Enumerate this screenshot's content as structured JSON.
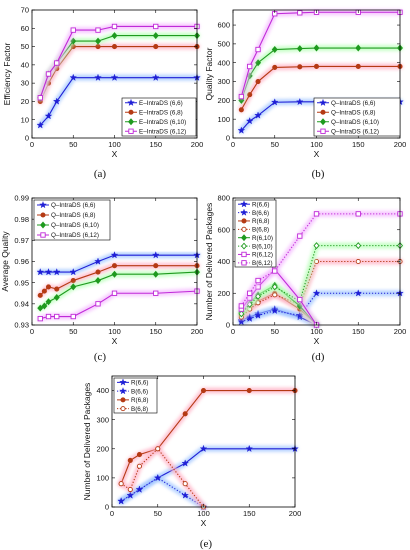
{
  "colors": {
    "blue": "#1f1fd6",
    "brown": "#b53a14",
    "green": "#1f9a1f",
    "purple": "#c02bd8",
    "glow_blue": "#9fc4ff",
    "glow_red": "#ffb0c4",
    "glow_green": "#b6ffb6",
    "glow_purple": "#f4b8ff"
  },
  "chart_data": [
    {
      "id": "a",
      "panel_label": "(a)",
      "type": "line",
      "xlabel": "X",
      "ylabel": "Efficiency Factor",
      "xlim": [
        0,
        200
      ],
      "ylim": [
        0,
        70
      ],
      "xticks": [
        "0",
        "50",
        "100",
        "150",
        "200"
      ],
      "yticks": [
        "0",
        "10",
        "20",
        "30",
        "40",
        "50",
        "60",
        "70"
      ],
      "legend_position": "bottom-right",
      "grid": false,
      "series": [
        {
          "name": "E–IntraDS (6,6)",
          "color": "blue",
          "marker": "star",
          "line": "solid",
          "x": [
            10,
            20,
            30,
            50,
            80,
            100,
            150,
            200
          ],
          "y": [
            7,
            12,
            20,
            33,
            33,
            33,
            33,
            33
          ]
        },
        {
          "name": "E–IntraDS (6,8)",
          "color": "brown",
          "marker": "circle",
          "line": "solid",
          "x": [
            10,
            20,
            30,
            50,
            80,
            100,
            150,
            200
          ],
          "y": [
            20,
            30,
            38,
            50,
            50,
            50,
            50,
            50
          ]
        },
        {
          "name": "E–IntraDS (6,10)",
          "color": "green",
          "marker": "diamond",
          "line": "solid",
          "x": [
            10,
            20,
            30,
            50,
            80,
            100,
            150,
            200
          ],
          "y": [
            22,
            35,
            41,
            53,
            53,
            56,
            56,
            56
          ]
        },
        {
          "name": "E–IntraDS (6,12)",
          "color": "purple",
          "marker": "square",
          "line": "solid",
          "x": [
            10,
            20,
            30,
            50,
            80,
            100,
            150,
            200
          ],
          "y": [
            22,
            35,
            41,
            59,
            59,
            61,
            61,
            61
          ]
        }
      ]
    },
    {
      "id": "b",
      "panel_label": "(b)",
      "type": "line",
      "xlabel": "X",
      "ylabel": "Quality Factor",
      "xlim": [
        0,
        200
      ],
      "ylim": [
        0,
        680
      ],
      "xticks": [
        "0",
        "50",
        "100",
        "150",
        "200"
      ],
      "yticks": [
        "0",
        "100",
        "200",
        "300",
        "400",
        "500",
        "600"
      ],
      "legend_position": "bottom-right",
      "grid": false,
      "series": [
        {
          "name": "Q–IntraDS (6,6)",
          "color": "blue",
          "marker": "star",
          "line": "solid",
          "x": [
            10,
            20,
            30,
            50,
            80,
            100,
            150,
            200
          ],
          "y": [
            40,
            90,
            120,
            190,
            192,
            192,
            192,
            192
          ]
        },
        {
          "name": "Q–IntraDS (6,8)",
          "color": "brown",
          "marker": "circle",
          "line": "solid",
          "x": [
            10,
            20,
            30,
            50,
            80,
            100,
            150,
            200
          ],
          "y": [
            150,
            230,
            300,
            375,
            378,
            380,
            380,
            380
          ]
        },
        {
          "name": "Q–IntraDS (6,10)",
          "color": "green",
          "marker": "diamond",
          "line": "solid",
          "x": [
            10,
            20,
            30,
            50,
            80,
            100,
            150,
            200
          ],
          "y": [
            200,
            330,
            400,
            470,
            475,
            478,
            478,
            478
          ]
        },
        {
          "name": "Q–IntraDS (6,12)",
          "color": "purple",
          "marker": "square",
          "line": "solid",
          "x": [
            10,
            20,
            30,
            50,
            80,
            100,
            150,
            200
          ],
          "y": [
            220,
            380,
            470,
            660,
            665,
            668,
            668,
            668
          ]
        }
      ]
    },
    {
      "id": "c",
      "panel_label": "(c)",
      "type": "line",
      "xlabel": "X",
      "ylabel": "Average Quality",
      "xlim": [
        0,
        200
      ],
      "ylim": [
        0.93,
        0.99
      ],
      "xticks": [
        "0",
        "50",
        "100",
        "150",
        "200"
      ],
      "yticks": [
        "0.93",
        "0.94",
        "0.95",
        "0.96",
        "0.97",
        "0.98",
        "0.99"
      ],
      "legend_position": "top-left",
      "grid": false,
      "series": [
        {
          "name": "Q–IntraDS (6,6)",
          "color": "blue",
          "marker": "star",
          "line": "solid",
          "x": [
            10,
            20,
            30,
            50,
            80,
            100,
            150,
            200
          ],
          "y": [
            0.955,
            0.955,
            0.955,
            0.955,
            0.96,
            0.963,
            0.963,
            0.963
          ]
        },
        {
          "name": "Q–IntraDS (6,8)",
          "color": "brown",
          "marker": "circle",
          "line": "solid",
          "x": [
            10,
            15,
            20,
            30,
            50,
            80,
            100,
            150,
            200
          ],
          "y": [
            0.944,
            0.946,
            0.948,
            0.947,
            0.951,
            0.955,
            0.958,
            0.958,
            0.958
          ]
        },
        {
          "name": "Q–IntraDS (6,10)",
          "color": "green",
          "marker": "diamond",
          "line": "solid",
          "x": [
            10,
            15,
            20,
            30,
            50,
            80,
            100,
            150,
            200
          ],
          "y": [
            0.938,
            0.939,
            0.941,
            0.943,
            0.948,
            0.951,
            0.954,
            0.954,
            0.955
          ]
        },
        {
          "name": "Q–IntraDS (6,12)",
          "color": "purple",
          "marker": "square",
          "line": "solid",
          "x": [
            10,
            20,
            30,
            50,
            80,
            100,
            150,
            200
          ],
          "y": [
            0.933,
            0.934,
            0.934,
            0.934,
            0.94,
            0.945,
            0.945,
            0.946
          ]
        }
      ]
    },
    {
      "id": "d",
      "panel_label": "(d)",
      "type": "line",
      "xlabel": "X",
      "ylabel": "Number of Delivered Packages",
      "xlim": [
        0,
        200
      ],
      "ylim": [
        0,
        800
      ],
      "xticks": [
        "0",
        "50",
        "100",
        "150",
        "200"
      ],
      "yticks": [
        "0",
        "200",
        "400",
        "600",
        "800"
      ],
      "legend_position": "top-left",
      "grid": false,
      "series": [
        {
          "name": "R(6,6)",
          "color": "blue",
          "marker": "star",
          "line": "solid",
          "x": [
            10,
            20,
            30,
            50,
            80,
            100
          ],
          "y": [
            30,
            50,
            70,
            100,
            50,
            0
          ]
        },
        {
          "name": "B(6,6)",
          "color": "blue",
          "marker": "star",
          "line": "dotted",
          "x": [
            10,
            20,
            30,
            50,
            80,
            100,
            150,
            200
          ],
          "y": [
            20,
            40,
            60,
            90,
            60,
            200,
            200,
            200
          ]
        },
        {
          "name": "R(6,8)",
          "color": "brown",
          "marker": "circle",
          "line": "solid",
          "x": [
            10,
            20,
            30,
            50,
            80,
            100
          ],
          "y": [
            60,
            110,
            150,
            200,
            100,
            0
          ]
        },
        {
          "name": "B(6,8)",
          "color": "brown",
          "marker": "circle-open",
          "line": "dotted",
          "x": [
            10,
            20,
            30,
            50,
            80,
            100,
            150,
            200
          ],
          "y": [
            50,
            100,
            140,
            190,
            130,
            400,
            400,
            400
          ]
        },
        {
          "name": "R(6,10)",
          "color": "green",
          "marker": "diamond",
          "line": "solid",
          "x": [
            10,
            20,
            30,
            50,
            80,
            100
          ],
          "y": [
            80,
            140,
            190,
            250,
            120,
            0
          ]
        },
        {
          "name": "B(6,10)",
          "color": "green",
          "marker": "diamond-open",
          "line": "dotted",
          "x": [
            10,
            20,
            30,
            50,
            80,
            100,
            150,
            200
          ],
          "y": [
            70,
            130,
            180,
            240,
            150,
            500,
            500,
            500
          ]
        },
        {
          "name": "R(6,12)",
          "color": "purple",
          "marker": "square",
          "line": "solid",
          "x": [
            10,
            20,
            30,
            50,
            80,
            100
          ],
          "y": [
            100,
            170,
            240,
            350,
            160,
            0
          ]
        },
        {
          "name": "B(6,12)",
          "color": "purple",
          "marker": "square-open",
          "line": "dotted",
          "x": [
            10,
            20,
            30,
            50,
            80,
            100,
            150,
            200
          ],
          "y": [
            120,
            200,
            280,
            340,
            560,
            700,
            700,
            700
          ]
        }
      ]
    },
    {
      "id": "e",
      "panel_label": "(e)",
      "type": "line",
      "xlabel": "X",
      "ylabel": "Number of Delivered Packages",
      "xlim": [
        0,
        200
      ],
      "ylim": [
        0,
        450
      ],
      "xticks": [
        "0",
        "50",
        "100",
        "150",
        "200"
      ],
      "yticks": [
        "0",
        "100",
        "200",
        "300",
        "400"
      ],
      "legend_position": "top-left",
      "grid": false,
      "series": [
        {
          "name": "R(6,6)",
          "color": "blue",
          "marker": "star",
          "line": "solid",
          "x": [
            10,
            20,
            30,
            50,
            80,
            100,
            150,
            200
          ],
          "y": [
            20,
            40,
            60,
            100,
            150,
            200,
            200,
            200
          ]
        },
        {
          "name": "B(6,6)",
          "color": "blue",
          "marker": "star",
          "line": "dotted",
          "x": [
            10,
            20,
            30,
            50,
            80,
            100
          ],
          "y": [
            20,
            40,
            60,
            100,
            40,
            0
          ]
        },
        {
          "name": "R(6,8)",
          "color": "brown",
          "marker": "circle",
          "line": "solid",
          "x": [
            10,
            20,
            30,
            50,
            80,
            100,
            150,
            200
          ],
          "y": [
            80,
            160,
            180,
            200,
            320,
            400,
            400,
            400
          ]
        },
        {
          "name": "B(6,8)",
          "color": "brown",
          "marker": "circle-open",
          "line": "dotted",
          "x": [
            10,
            20,
            30,
            50,
            80,
            100
          ],
          "y": [
            80,
            60,
            140,
            200,
            80,
            0
          ]
        }
      ]
    }
  ]
}
